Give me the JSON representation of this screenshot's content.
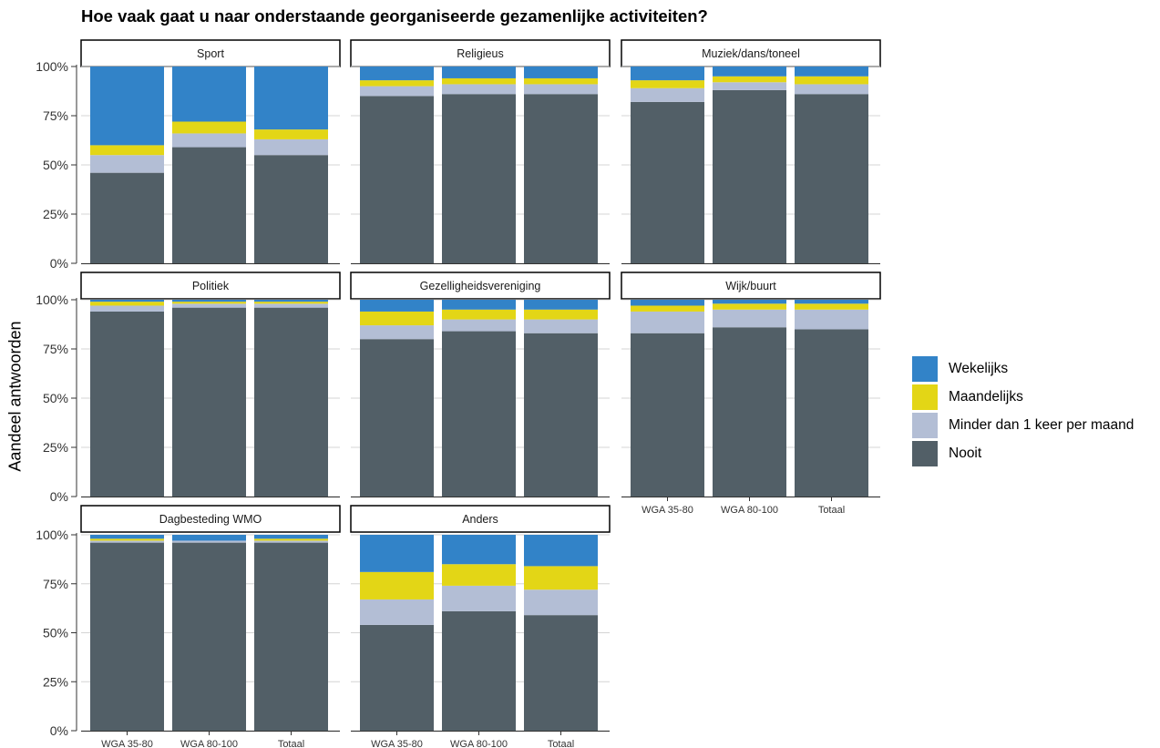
{
  "chart_data": {
    "type": "bar",
    "stacked": true,
    "title": "Hoe vaak gaat u naar onderstaande georganiseerde gezamenlijke activiteiten?",
    "ylabel": "Aandeel antwoorden",
    "xlabel": "",
    "ylim": [
      0,
      100
    ],
    "y_ticks": [
      "0%",
      "25%",
      "50%",
      "75%",
      "100%"
    ],
    "categories": [
      "WGA 35-80",
      "WGA 80-100",
      "Totaal"
    ],
    "grid": "horizontal",
    "legend": "right",
    "series": [
      {
        "name": "Nooit",
        "color": "#525f67"
      },
      {
        "name": "Minder dan 1 keer per maand",
        "color": "#b3bed5"
      },
      {
        "name": "Maandelijks",
        "color": "#e3d616"
      },
      {
        "name": "Wekelijks",
        "color": "#3283c8"
      }
    ],
    "legend_order": [
      "Wekelijks",
      "Maandelijks",
      "Minder dan 1 keer per maand",
      "Nooit"
    ],
    "panels": [
      {
        "name": "Sport",
        "values": [
          [
            46,
            9,
            5,
            40
          ],
          [
            59,
            7,
            6,
            28
          ],
          [
            55,
            8,
            5,
            32
          ]
        ]
      },
      {
        "name": "Religieus",
        "values": [
          [
            85,
            5,
            3,
            7
          ],
          [
            86,
            5,
            3,
            6
          ],
          [
            86,
            5,
            3,
            6
          ]
        ]
      },
      {
        "name": "Muziek/dans/toneel",
        "values": [
          [
            82,
            7,
            4,
            7
          ],
          [
            88,
            4,
            3,
            5
          ],
          [
            86,
            5,
            4,
            5
          ]
        ]
      },
      {
        "name": "Politiek",
        "values": [
          [
            94,
            3,
            2,
            1
          ],
          [
            96,
            2,
            1,
            1
          ],
          [
            96,
            2,
            1,
            1
          ]
        ]
      },
      {
        "name": "Gezelligheidsvereniging",
        "values": [
          [
            80,
            7,
            7,
            6
          ],
          [
            84,
            6,
            5,
            5
          ],
          [
            83,
            7,
            5,
            5
          ]
        ]
      },
      {
        "name": "Wijk/buurt",
        "values": [
          [
            83,
            11,
            3,
            3
          ],
          [
            86,
            9,
            3,
            2
          ],
          [
            85,
            10,
            3,
            2
          ]
        ]
      },
      {
        "name": "Dagbesteding WMO",
        "values": [
          [
            96,
            1,
            1,
            2
          ],
          [
            96,
            1,
            0,
            3
          ],
          [
            96,
            1,
            1,
            2
          ]
        ]
      },
      {
        "name": "Anders",
        "values": [
          [
            54,
            13,
            14,
            19
          ],
          [
            61,
            13,
            11,
            15
          ],
          [
            59,
            13,
            12,
            16
          ]
        ]
      }
    ]
  }
}
